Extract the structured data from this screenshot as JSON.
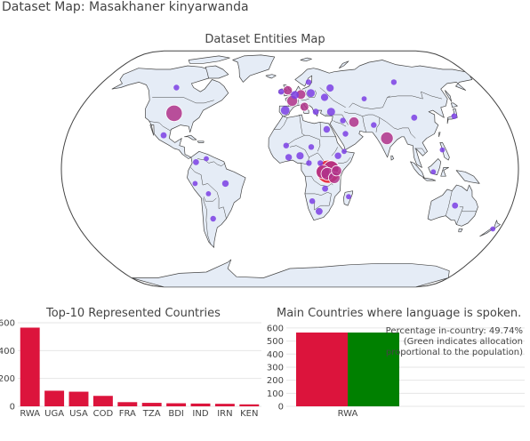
{
  "page": {
    "title": "Dataset Map: Masakhaner kinyarwanda"
  },
  "colors": {
    "land": "#e5ecf6",
    "border": "#444444",
    "bubble_high": "#e8182a",
    "bubble_mid": "#b0338a",
    "bubble_low": "#7b3fe4",
    "bar_red": "#dc143c",
    "bar_green": "#008000",
    "grid": "#e6e6e6"
  },
  "chart_data": [
    {
      "type": "scatter",
      "title": "Dataset Entities Map",
      "projection": "natural earth",
      "points": [
        {
          "lon": 30.1,
          "lat": -1.9,
          "size": 1
        },
        {
          "lon": 32.5,
          "lat": 0.3,
          "size": 0.45
        },
        {
          "lon": 26.0,
          "lat": -2.0,
          "size": 0.35
        },
        {
          "lon": 29.5,
          "lat": -3.3,
          "size": 0.3
        },
        {
          "lon": 35.0,
          "lat": -6.0,
          "size": 0.25
        },
        {
          "lon": 36.8,
          "lat": -1.3,
          "size": 0.2
        },
        {
          "lon": -98.0,
          "lat": 38.0,
          "size": 0.5
        },
        {
          "lon": 78.0,
          "lat": 21.0,
          "size": 0.3
        },
        {
          "lon": 53.0,
          "lat": 32.0,
          "size": 0.2
        },
        {
          "lon": 2.0,
          "lat": 46.5,
          "size": 0.22
        },
        {
          "lon": 10.0,
          "lat": 51.0,
          "size": 0.18
        },
        {
          "lon": -2.0,
          "lat": 54.0,
          "size": 0.16
        },
        {
          "lon": 12.5,
          "lat": 42.5,
          "size": 0.15
        },
        {
          "lon": -4.0,
          "lat": 40.0,
          "size": 0.14
        },
        {
          "lon": 4.5,
          "lat": 50.7,
          "size": 0.12
        },
        {
          "lon": 19.0,
          "lat": 52.0,
          "size": 0.12
        },
        {
          "lon": 35.0,
          "lat": 39.0,
          "size": 0.12
        },
        {
          "lon": 31.0,
          "lat": 49.0,
          "size": 0.1
        },
        {
          "lon": 37.5,
          "lat": 55.7,
          "size": 0.1
        },
        {
          "lon": 8.0,
          "lat": 9.0,
          "size": 0.1
        },
        {
          "lon": -1.0,
          "lat": 8.0,
          "size": 0.08
        },
        {
          "lon": 30.0,
          "lat": 27.0,
          "size": 0.08
        },
        {
          "lon": 38.0,
          "lat": 9.0,
          "size": 0.08
        },
        {
          "lon": 24.0,
          "lat": -29.0,
          "size": 0.09
        },
        {
          "lon": 28.0,
          "lat": -13.5,
          "size": 0.07
        },
        {
          "lon": -51.0,
          "lat": -10.0,
          "size": 0.08
        },
        {
          "lon": -74.0,
          "lat": 4.6,
          "size": 0.07
        },
        {
          "lon": -64.0,
          "lat": -34.0,
          "size": 0.06
        },
        {
          "lon": -102.0,
          "lat": 23.0,
          "size": 0.07
        },
        {
          "lon": -106.0,
          "lat": 56.0,
          "size": 0.06
        },
        {
          "lon": 134.0,
          "lat": -25.0,
          "size": 0.07
        },
        {
          "lon": 104.0,
          "lat": 35.0,
          "size": 0.07
        },
        {
          "lon": 138.0,
          "lat": 36.0,
          "size": 0.06
        },
        {
          "lon": 100.0,
          "lat": 60.0,
          "size": 0.06
        },
        {
          "lon": 113.0,
          "lat": -2.0,
          "size": 0.05
        },
        {
          "lon": 69.0,
          "lat": 30.0,
          "size": 0.06
        },
        {
          "lon": 45.0,
          "lat": 24.0,
          "size": 0.06
        },
        {
          "lon": 44.0,
          "lat": 33.0,
          "size": 0.06
        },
        {
          "lon": 66.0,
          "lat": 48.0,
          "size": 0.05
        },
        {
          "lon": -3.0,
          "lat": 16.0,
          "size": 0.06
        },
        {
          "lon": 17.0,
          "lat": 15.0,
          "size": 0.06
        },
        {
          "lon": 47.0,
          "lat": -19.0,
          "size": 0.05
        },
        {
          "lon": 18.0,
          "lat": -22.0,
          "size": 0.06
        },
        {
          "lon": 18.0,
          "lat": 60.0,
          "size": 0.06
        },
        {
          "lon": -8.0,
          "lat": 53.0,
          "size": 0.06
        },
        {
          "lon": 22.0,
          "lat": 39.0,
          "size": 0.07
        },
        {
          "lon": -66.0,
          "lat": 7.0,
          "size": 0.05
        },
        {
          "lon": -75.0,
          "lat": -10.0,
          "size": 0.05
        },
        {
          "lon": -65.0,
          "lat": -17.0,
          "size": 0.05
        },
        {
          "lon": 121.0,
          "lat": 13.0,
          "size": 0.05
        },
        {
          "lon": 174.0,
          "lat": -41.0,
          "size": 0.05
        },
        {
          "lon": 43.0,
          "lat": 12.0,
          "size": 0.05
        },
        {
          "lon": 15.0,
          "lat": 4.0,
          "size": 0.06
        },
        {
          "lon": 24.0,
          "lat": 4.0,
          "size": 0.06
        }
      ]
    },
    {
      "type": "bar",
      "title": "Top-10 Represented Countries",
      "categories": [
        "RWA",
        "UGA",
        "USA",
        "COD",
        "FRA",
        "TZA",
        "BDI",
        "IND",
        "IRN",
        "KEN"
      ],
      "values": [
        565,
        112,
        105,
        75,
        30,
        25,
        22,
        20,
        18,
        14
      ],
      "ylim": [
        0,
        600
      ],
      "yticks": [
        0,
        200,
        400,
        600
      ],
      "color": "#dc143c"
    },
    {
      "type": "bar",
      "title": "Main Countries where language is spoken.",
      "categories": [
        "RWA"
      ],
      "series": [
        {
          "values": [
            565
          ],
          "color": "#dc143c"
        },
        {
          "values": [
            565
          ],
          "color": "#008000"
        }
      ],
      "ylim": [
        0,
        640
      ],
      "yticks": [
        0,
        100,
        200,
        300,
        400,
        500,
        600
      ],
      "annotation": [
        "Percentage in-country: 49.74%",
        "(Green indicates allocation",
        "proportional to the population)"
      ]
    }
  ]
}
